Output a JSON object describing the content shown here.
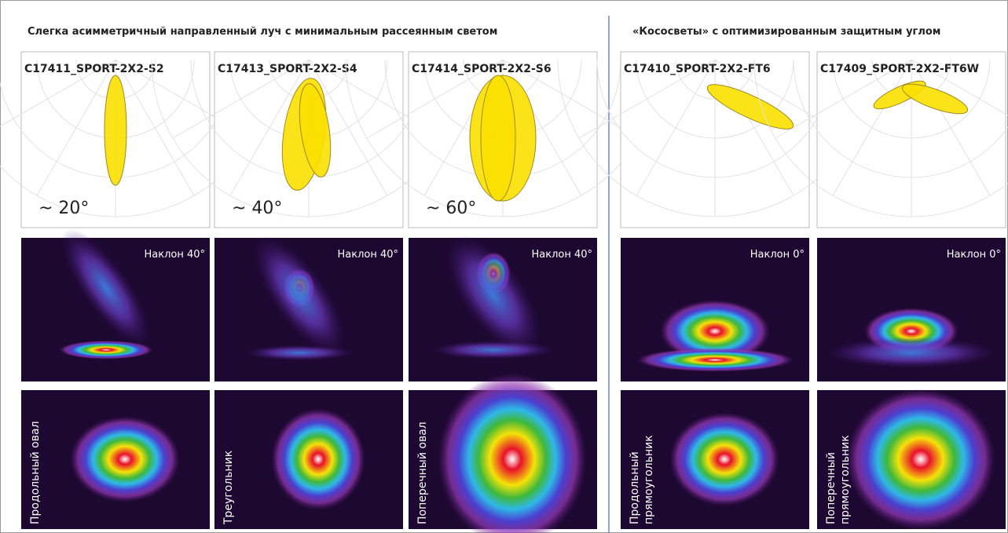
{
  "sections": [
    {
      "title": "Слегка асимметричный направленный луч с минимальным рассеянным светом",
      "columns": [
        {
          "model": "C17411_SPORT-2X2-S2",
          "angle": "~ 20°",
          "tilt": "Наклон 40°",
          "pattern": [
            "Продольный овал"
          ]
        },
        {
          "model": "C17413_SPORT-2X2-S4",
          "angle": "~ 40°",
          "tilt": "Наклон 40°",
          "pattern": [
            "Треугольник"
          ]
        },
        {
          "model": "C17414_SPORT-2X2-S6",
          "angle": "~ 60°",
          "tilt": "Наклон 40°",
          "pattern": [
            "Поперечный овал"
          ]
        }
      ]
    },
    {
      "title": "«Кососветы» с оптимизированным защитным углом",
      "columns": [
        {
          "model": "C17410_SPORT-2X2-FT6",
          "tilt": "Наклон 0°",
          "pattern": [
            "Продольный",
            "прямоугольник"
          ]
        },
        {
          "model": "C17409_SPORT-2X2-FT6W",
          "tilt": "Наклон 0°",
          "pattern": [
            "Поперечный",
            "прямоугольник"
          ]
        }
      ]
    }
  ]
}
